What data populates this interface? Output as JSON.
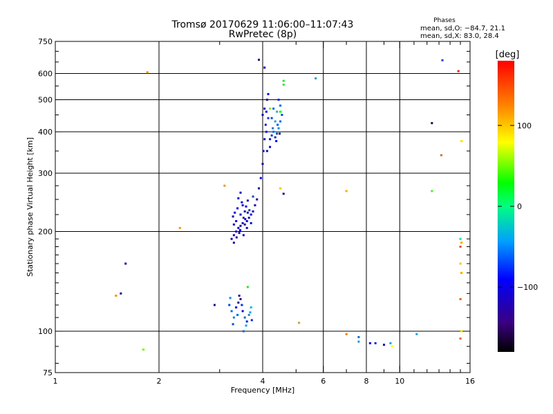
{
  "chart_data": {
    "type": "scatter",
    "title": "Tromsø 20170629 11:06:00–11:07:43",
    "subtitle": "RwPretec (8p)",
    "stats": {
      "title": "Phases",
      "line1": "mean, sd,O: −84.7, 21.1",
      "line2": "mean, sd,X: 83.0, 28.4"
    },
    "xlabel": "Frequency [MHz]",
    "ylabel": "Stationary phase Virtual Height [km]",
    "xscale": "log",
    "yscale": "log",
    "xlim": [
      1,
      16
    ],
    "ylim": [
      75,
      750
    ],
    "grid": true,
    "x_gridlines": [
      2,
      4,
      6,
      8,
      10
    ],
    "y_gridlines": [
      100,
      200,
      300,
      400,
      500,
      600
    ],
    "x_ticks": [
      {
        "value": 1,
        "label": "1"
      },
      {
        "value": 2,
        "label": "2"
      },
      {
        "value": 4,
        "label": "4"
      },
      {
        "value": 6,
        "label": "6"
      },
      {
        "value": 8,
        "label": "8"
      },
      {
        "value": 10,
        "label": "10"
      },
      {
        "value": 16,
        "label": "16"
      }
    ],
    "y_ticks": [
      {
        "value": 75,
        "label": "75"
      },
      {
        "value": 100,
        "label": "100"
      },
      {
        "value": 200,
        "label": "200"
      },
      {
        "value": 300,
        "label": "300"
      },
      {
        "value": 400,
        "label": "400"
      },
      {
        "value": 500,
        "label": "500"
      },
      {
        "value": 600,
        "label": "600"
      },
      {
        "value": 750,
        "label": "750"
      }
    ],
    "colorbar": {
      "label": "[deg]",
      "min": -180,
      "max": 180,
      "ticks": [
        {
          "value": 100,
          "label": "100"
        },
        {
          "value": 0,
          "label": "0"
        },
        {
          "value": -100,
          "label": "−100"
        }
      ]
    },
    "points": [
      [
        3.25,
        190,
        -110
      ],
      [
        3.3,
        195,
        -105
      ],
      [
        3.35,
        200,
        -100
      ],
      [
        3.4,
        205,
        -95
      ],
      [
        3.45,
        208,
        -110
      ],
      [
        3.5,
        212,
        -100
      ],
      [
        3.55,
        210,
        -105
      ],
      [
        3.6,
        215,
        -95
      ],
      [
        3.65,
        220,
        -100
      ],
      [
        3.7,
        225,
        -90
      ],
      [
        3.75,
        230,
        -95
      ],
      [
        3.8,
        240,
        -100
      ],
      [
        3.85,
        250,
        -110
      ],
      [
        3.9,
        270,
        -100
      ],
      [
        3.95,
        290,
        -90
      ],
      [
        4.0,
        320,
        -100
      ],
      [
        4.02,
        350,
        -95
      ],
      [
        4.05,
        380,
        -90
      ],
      [
        4.08,
        420,
        -85
      ],
      [
        4.1,
        460,
        -90
      ],
      [
        4.12,
        500,
        -100
      ],
      [
        4.15,
        520,
        -95
      ],
      [
        3.35,
        215,
        -100
      ],
      [
        3.45,
        225,
        -90
      ],
      [
        3.55,
        230,
        -100
      ],
      [
        3.38,
        235,
        -95
      ],
      [
        3.5,
        240,
        -105
      ],
      [
        3.3,
        210,
        -100
      ],
      [
        3.6,
        205,
        -110
      ],
      [
        3.42,
        198,
        -110
      ],
      [
        3.52,
        220,
        -80
      ],
      [
        3.62,
        228,
        -85
      ],
      [
        3.7,
        212,
        -90
      ],
      [
        3.28,
        222,
        -100
      ],
      [
        3.48,
        245,
        -95
      ],
      [
        3.32,
        228,
        -90
      ],
      [
        3.58,
        238,
        -100
      ],
      [
        3.4,
        252,
        -90
      ],
      [
        3.45,
        262,
        -100
      ],
      [
        3.56,
        218,
        -115
      ],
      [
        3.36,
        192,
        -120
      ],
      [
        3.66,
        232,
        -75
      ],
      [
        3.44,
        202,
        -95
      ],
      [
        3.52,
        195,
        -100
      ],
      [
        3.3,
        185,
        -110
      ],
      [
        3.62,
        248,
        -95
      ],
      [
        3.75,
        255,
        -70
      ],
      [
        4.2,
        380,
        -85
      ],
      [
        4.25,
        390,
        -75
      ],
      [
        4.3,
        400,
        -60
      ],
      [
        4.35,
        385,
        -80
      ],
      [
        4.4,
        395,
        -70
      ],
      [
        4.45,
        410,
        -50
      ],
      [
        4.5,
        430,
        -60
      ],
      [
        4.55,
        450,
        -70
      ],
      [
        4.5,
        480,
        -60
      ],
      [
        4.45,
        500,
        -80
      ],
      [
        4.25,
        440,
        -70
      ],
      [
        4.3,
        470,
        -60
      ],
      [
        4.35,
        430,
        -40
      ],
      [
        4.4,
        460,
        -30
      ],
      [
        4.28,
        410,
        -55
      ],
      [
        4.42,
        420,
        -65
      ],
      [
        4.48,
        395,
        -85
      ],
      [
        4.38,
        375,
        -90
      ],
      [
        4.2,
        360,
        -90
      ],
      [
        4.15,
        440,
        -75
      ],
      [
        4.05,
        470,
        -90
      ],
      [
        4.1,
        400,
        -85
      ],
      [
        4.0,
        450,
        -100
      ],
      [
        4.12,
        350,
        -95
      ],
      [
        3.2,
        120,
        -70
      ],
      [
        3.25,
        115,
        -60
      ],
      [
        3.3,
        110,
        -50
      ],
      [
        3.35,
        118,
        -100
      ],
      [
        3.4,
        122,
        -130
      ],
      [
        3.45,
        125,
        -140
      ],
      [
        3.5,
        115,
        -90
      ],
      [
        3.55,
        110,
        -60
      ],
      [
        3.6,
        107,
        -80
      ],
      [
        3.65,
        112,
        -50
      ],
      [
        3.7,
        118,
        -30
      ],
      [
        3.72,
        108,
        -80
      ],
      [
        3.68,
        114,
        -40
      ],
      [
        3.58,
        104,
        -40
      ],
      [
        3.48,
        120,
        -80
      ],
      [
        3.38,
        112,
        -60
      ],
      [
        3.28,
        105,
        -70
      ],
      [
        3.22,
        126,
        -50
      ],
      [
        3.62,
        136,
        30
      ],
      [
        3.52,
        100,
        -60
      ],
      [
        2.9,
        120,
        -120
      ],
      [
        3.42,
        128,
        -110
      ],
      [
        3.9,
        660,
        -100
      ],
      [
        4.05,
        625,
        -100
      ],
      [
        4.6,
        555,
        20
      ],
      [
        4.6,
        570,
        20
      ],
      [
        4.5,
        460,
        30
      ],
      [
        4.2,
        470,
        50
      ],
      [
        5.7,
        580,
        -40
      ],
      [
        4.6,
        260,
        -120
      ],
      [
        4.5,
        270,
        100
      ],
      [
        3.1,
        275,
        120
      ],
      [
        2.3,
        205,
        120
      ],
      [
        1.85,
        605,
        120
      ],
      [
        1.6,
        160,
        -130
      ],
      [
        1.55,
        130,
        -110
      ],
      [
        1.5,
        128,
        120
      ],
      [
        1.8,
        88,
        50
      ],
      [
        5.1,
        106,
        120
      ],
      [
        7.0,
        98,
        130
      ],
      [
        7.0,
        265,
        110
      ],
      [
        7.6,
        96,
        -60
      ],
      [
        7.6,
        93,
        -40
      ],
      [
        8.2,
        92,
        -100
      ],
      [
        8.5,
        92,
        -80
      ],
      [
        9.0,
        91,
        -120
      ],
      [
        9.4,
        92,
        -40
      ],
      [
        9.5,
        90,
        80
      ],
      [
        11.2,
        98,
        -40
      ],
      [
        12.4,
        425,
        -160
      ],
      [
        12.4,
        265,
        40
      ],
      [
        13.3,
        658,
        -70
      ],
      [
        13.2,
        340,
        140
      ],
      [
        14.8,
        610,
        170
      ],
      [
        15.1,
        375,
        90
      ],
      [
        15.0,
        190,
        -10
      ],
      [
        15.1,
        185,
        110
      ],
      [
        15.0,
        180,
        150
      ],
      [
        15.0,
        160,
        100
      ],
      [
        15.1,
        150,
        110
      ],
      [
        15.0,
        125,
        140
      ],
      [
        15.1,
        100,
        90
      ],
      [
        15.0,
        95,
        140
      ]
    ]
  }
}
